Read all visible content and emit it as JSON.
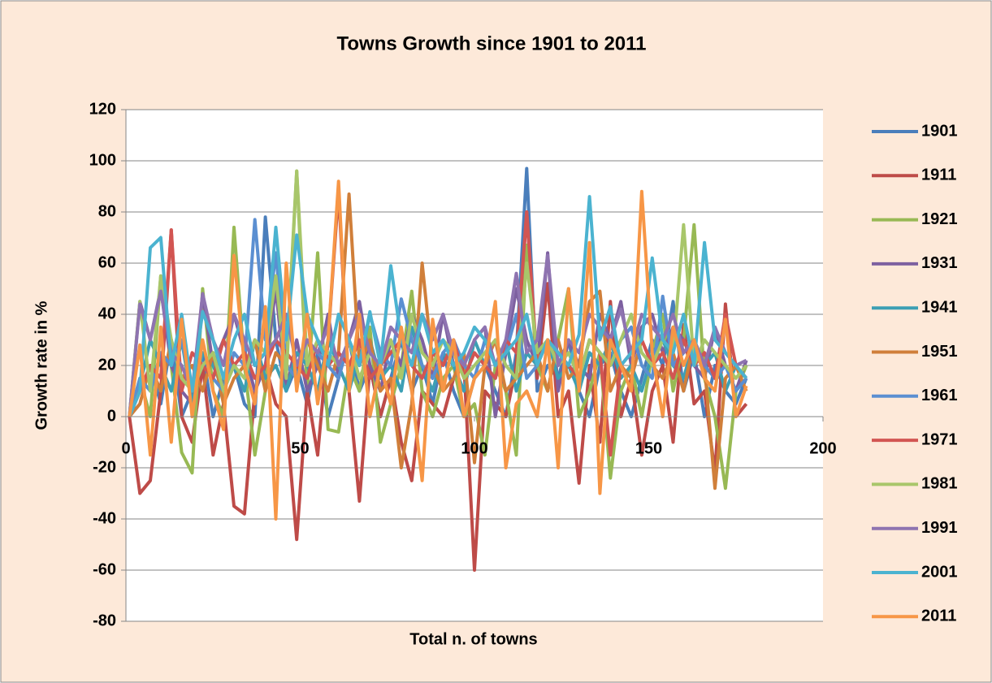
{
  "chart_data": {
    "type": "line",
    "title": "Towns Growth since 1901 to 2011",
    "x_label": "Total n. of towns",
    "y_label": "Growth rate in %",
    "xlim": [
      0,
      200
    ],
    "xticks": [
      0,
      50,
      100,
      150,
      200
    ],
    "ylim": [
      -80,
      120
    ],
    "yticks": [
      -80,
      -60,
      -40,
      -20,
      0,
      20,
      40,
      60,
      80,
      100,
      120
    ],
    "grid": true,
    "legend": "right",
    "x": [
      1,
      4,
      7,
      10,
      13,
      16,
      19,
      22,
      25,
      28,
      31,
      34,
      37,
      40,
      43,
      46,
      49,
      52,
      55,
      58,
      61,
      64,
      67,
      70,
      73,
      76,
      79,
      82,
      85,
      88,
      91,
      94,
      97,
      100,
      103,
      106,
      109,
      112,
      115,
      118,
      121,
      124,
      127,
      130,
      133,
      136,
      139,
      142,
      145,
      148,
      151,
      154,
      157,
      160,
      163,
      166,
      169,
      172,
      175,
      178
    ],
    "series": [
      {
        "name": "1901",
        "color": "#4a7ebb",
        "values": [
          0,
          10,
          20,
          5,
          30,
          0,
          10,
          25,
          0,
          15,
          20,
          5,
          0,
          78,
          30,
          10,
          20,
          5,
          25,
          0,
          15,
          30,
          10,
          20,
          0,
          15,
          30,
          10,
          20,
          5,
          25,
          10,
          0,
          15,
          20,
          10,
          0,
          25,
          97,
          10,
          20,
          15,
          30,
          10,
          0,
          20,
          25,
          10,
          0,
          15,
          30,
          20,
          45,
          10,
          25,
          0,
          20,
          10,
          5,
          15
        ]
      },
      {
        "name": "1911",
        "color": "#be4b48",
        "values": [
          0,
          -30,
          -25,
          10,
          73,
          0,
          -10,
          20,
          -15,
          5,
          -35,
          -38,
          10,
          20,
          5,
          0,
          -48,
          10,
          -15,
          30,
          88,
          10,
          -33,
          20,
          0,
          15,
          -10,
          -25,
          10,
          5,
          0,
          15,
          20,
          -60,
          10,
          5,
          0,
          20,
          80,
          15,
          52,
          0,
          10,
          -26,
          20,
          -10,
          45,
          0,
          15,
          -15,
          10,
          20,
          -10,
          36,
          5,
          10,
          -22,
          44,
          0,
          5
        ]
      },
      {
        "name": "1921",
        "color": "#98b954",
        "values": [
          0,
          15,
          0,
          55,
          20,
          -14,
          -22,
          50,
          10,
          0,
          74,
          20,
          -15,
          10,
          55,
          20,
          96,
          10,
          64,
          -5,
          -6,
          20,
          10,
          35,
          -10,
          5,
          20,
          49,
          10,
          0,
          15,
          20,
          0,
          5,
          -15,
          20,
          10,
          -15,
          67,
          20,
          10,
          30,
          50,
          0,
          10,
          25,
          -24,
          10,
          20,
          0,
          25,
          40,
          10,
          30,
          75,
          15,
          0,
          -28,
          10,
          20
        ]
      },
      {
        "name": "1931",
        "color": "#7d60a0",
        "values": [
          0,
          45,
          30,
          50,
          20,
          10,
          5,
          48,
          20,
          30,
          40,
          25,
          10,
          20,
          50,
          10,
          30,
          10,
          20,
          40,
          15,
          30,
          45,
          20,
          10,
          30,
          20,
          40,
          30,
          15,
          40,
          20,
          10,
          30,
          35,
          0,
          25,
          50,
          30,
          20,
          64,
          10,
          30,
          20,
          15,
          40,
          30,
          45,
          20,
          35,
          40,
          25,
          35,
          30,
          20,
          15,
          35,
          20,
          10,
          22
        ]
      },
      {
        "name": "1941",
        "color": "#3c9fb4",
        "values": [
          0,
          12,
          30,
          20,
          10,
          30,
          5,
          25,
          20,
          10,
          20,
          10,
          30,
          15,
          20,
          10,
          25,
          20,
          10,
          30,
          20,
          10,
          25,
          30,
          15,
          20,
          10,
          35,
          20,
          10,
          25,
          20,
          10,
          30,
          20,
          15,
          30,
          10,
          25,
          20,
          30,
          15,
          20,
          10,
          25,
          20,
          30,
          15,
          20,
          10,
          25,
          30,
          20,
          15,
          30,
          20,
          25,
          10,
          20,
          15
        ]
      },
      {
        "name": "1951",
        "color": "#d07f3a",
        "values": [
          0,
          5,
          20,
          10,
          30,
          15,
          20,
          10,
          25,
          5,
          15,
          20,
          30,
          10,
          25,
          20,
          15,
          30,
          20,
          10,
          25,
          87,
          20,
          30,
          10,
          15,
          -20,
          5,
          60,
          20,
          10,
          15,
          25,
          -18,
          20,
          30,
          10,
          15,
          20,
          25,
          10,
          30,
          15,
          20,
          45,
          49,
          10,
          20,
          15,
          30,
          20,
          15,
          25,
          10,
          30,
          20,
          -28,
          15,
          20,
          10
        ]
      },
      {
        "name": "1961",
        "color": "#5b8fd1",
        "values": [
          0,
          15,
          10,
          25,
          20,
          30,
          10,
          20,
          15,
          10,
          25,
          20,
          77,
          30,
          64,
          20,
          15,
          30,
          25,
          20,
          15,
          30,
          20,
          40,
          25,
          20,
          46,
          30,
          20,
          15,
          25,
          30,
          20,
          15,
          30,
          20,
          25,
          40,
          15,
          20,
          30,
          25,
          20,
          15,
          30,
          25,
          20,
          30,
          35,
          20,
          15,
          47,
          20,
          25,
          30,
          20,
          15,
          20,
          10,
          15
        ]
      },
      {
        "name": "1971",
        "color": "#d25552",
        "values": [
          0,
          10,
          20,
          15,
          73,
          10,
          25,
          20,
          15,
          30,
          20,
          25,
          15,
          20,
          30,
          25,
          20,
          15,
          30,
          20,
          25,
          20,
          30,
          15,
          20,
          25,
          30,
          20,
          15,
          25,
          20,
          30,
          15,
          25,
          20,
          15,
          30,
          25,
          80,
          20,
          30,
          25,
          20,
          15,
          30,
          25,
          -15,
          20,
          25,
          30,
          20,
          25,
          15,
          30,
          20,
          25,
          15,
          40,
          20,
          15
        ]
      },
      {
        "name": "1981",
        "color": "#a8c66a",
        "values": [
          0,
          45,
          10,
          55,
          30,
          15,
          10,
          20,
          25,
          10,
          20,
          15,
          30,
          25,
          55,
          15,
          96,
          20,
          30,
          25,
          20,
          30,
          15,
          25,
          20,
          30,
          15,
          40,
          25,
          20,
          30,
          25,
          15,
          20,
          25,
          30,
          20,
          15,
          60,
          25,
          30,
          20,
          25,
          15,
          30,
          25,
          20,
          30,
          40,
          25,
          20,
          30,
          25,
          75,
          20,
          30,
          25,
          20,
          15,
          20
        ]
      },
      {
        "name": "1991",
        "color": "#8e73b0",
        "values": [
          0,
          44,
          30,
          49,
          25,
          20,
          10,
          48,
          30,
          20,
          40,
          30,
          20,
          25,
          30,
          40,
          20,
          30,
          25,
          35,
          20,
          30,
          40,
          25,
          20,
          35,
          30,
          25,
          40,
          30,
          40,
          25,
          20,
          30,
          35,
          20,
          30,
          56,
          25,
          30,
          63,
          20,
          30,
          25,
          40,
          35,
          30,
          42,
          25,
          40,
          35,
          30,
          40,
          25,
          30,
          20,
          35,
          25,
          20,
          22
        ]
      },
      {
        "name": "2001",
        "color": "#4bb3d0",
        "values": [
          0,
          10,
          66,
          70,
          20,
          40,
          10,
          41,
          30,
          15,
          30,
          40,
          20,
          25,
          74,
          30,
          71,
          40,
          30,
          20,
          40,
          30,
          20,
          41,
          20,
          59,
          30,
          20,
          40,
          25,
          30,
          20,
          25,
          35,
          30,
          20,
          25,
          30,
          40,
          20,
          30,
          25,
          20,
          32,
          86,
          30,
          43,
          20,
          25,
          30,
          62,
          30,
          25,
          40,
          20,
          68,
          30,
          25,
          20,
          15
        ]
      },
      {
        "name": "2011",
        "color": "#f79646",
        "values": [
          0,
          28,
          -15,
          35,
          -10,
          38,
          0,
          30,
          10,
          -5,
          63,
          20,
          5,
          43,
          -40,
          60,
          10,
          40,
          5,
          30,
          92,
          10,
          40,
          0,
          20,
          5,
          35,
          10,
          -25,
          38,
          10,
          30,
          0,
          15,
          20,
          45,
          -20,
          5,
          10,
          0,
          30,
          -20,
          50,
          10,
          68,
          -30,
          30,
          20,
          10,
          88,
          25,
          0,
          35,
          20,
          30,
          15,
          10,
          38,
          0,
          12
        ]
      }
    ]
  }
}
